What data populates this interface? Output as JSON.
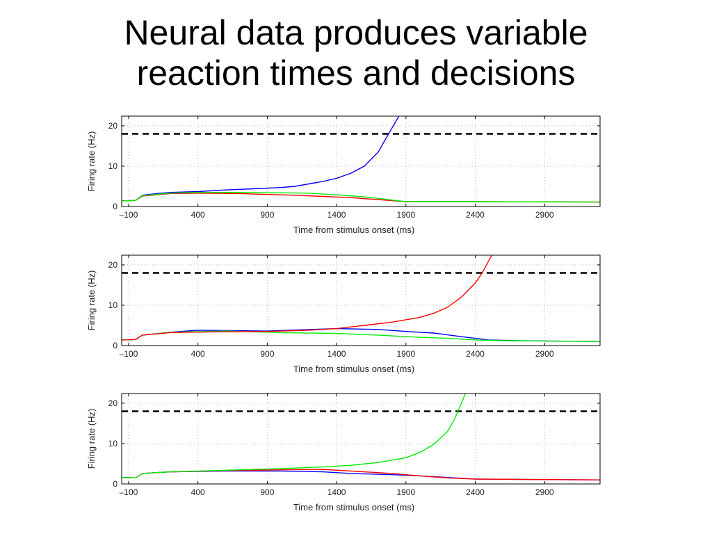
{
  "title_line1": "Neural data produces variable",
  "title_line2": "reaction times and decisions",
  "chart_data": [
    {
      "type": "line",
      "xlabel": "Time from stimulus onset (ms)",
      "ylabel": "Firing rate (Hz)",
      "xlim": [
        -150,
        3300
      ],
      "ylim": [
        0,
        22.4
      ],
      "xticks": [
        -100,
        400,
        900,
        1400,
        1900,
        2400,
        2900
      ],
      "yticks": [
        0,
        10,
        20
      ],
      "grid": true,
      "threshold": 18,
      "series": [
        {
          "name": "blue",
          "color": "#0000ff",
          "points": [
            [
              -150,
              1.4
            ],
            [
              -50,
              1.5
            ],
            [
              0,
              2.8
            ],
            [
              100,
              3.2
            ],
            [
              200,
              3.5
            ],
            [
              400,
              3.7
            ],
            [
              600,
              4.1
            ],
            [
              800,
              4.4
            ],
            [
              1000,
              4.7
            ],
            [
              1100,
              5
            ],
            [
              1200,
              5.6
            ],
            [
              1300,
              6.2
            ],
            [
              1400,
              7
            ],
            [
              1500,
              8.2
            ],
            [
              1600,
              10
            ],
            [
              1700,
              13.5
            ],
            [
              1750,
              16.5
            ],
            [
              1800,
              19.5
            ],
            [
              1860,
              23
            ]
          ]
        },
        {
          "name": "red",
          "color": "#ff0000",
          "points": [
            [
              -150,
              1.4
            ],
            [
              -50,
              1.5
            ],
            [
              0,
              2.6
            ],
            [
              200,
              3.2
            ],
            [
              400,
              3.3
            ],
            [
              700,
              3.2
            ],
            [
              900,
              3
            ],
            [
              1100,
              2.8
            ],
            [
              1300,
              2.5
            ],
            [
              1500,
              2.2
            ],
            [
              1700,
              1.7
            ],
            [
              1900,
              1.2
            ],
            [
              2400,
              1.2
            ],
            [
              3300,
              1.1
            ]
          ]
        },
        {
          "name": "green",
          "color": "#00ee00",
          "points": [
            [
              -150,
              1.4
            ],
            [
              -50,
              1.5
            ],
            [
              0,
              2.7
            ],
            [
              200,
              3.3
            ],
            [
              400,
              3.5
            ],
            [
              700,
              3.5
            ],
            [
              1000,
              3.4
            ],
            [
              1200,
              3.3
            ],
            [
              1400,
              2.9
            ],
            [
              1600,
              2.4
            ],
            [
              1800,
              1.6
            ],
            [
              1900,
              1.2
            ],
            [
              2400,
              1.2
            ],
            [
              3300,
              1.1
            ]
          ]
        }
      ]
    },
    {
      "type": "line",
      "xlabel": "Time from stimulus onset (ms)",
      "ylabel": "Firing rate (Hz)",
      "xlim": [
        -150,
        3300
      ],
      "ylim": [
        0,
        22.4
      ],
      "xticks": [
        -100,
        400,
        900,
        1400,
        1900,
        2400,
        2900
      ],
      "yticks": [
        0,
        10,
        20
      ],
      "grid": true,
      "threshold": 18,
      "series": [
        {
          "name": "blue",
          "color": "#0000ff",
          "points": [
            [
              -150,
              1.4
            ],
            [
              -50,
              1.5
            ],
            [
              0,
              2.6
            ],
            [
              200,
              3.3
            ],
            [
              400,
              3.8
            ],
            [
              900,
              3.6
            ],
            [
              1400,
              4.2
            ],
            [
              1700,
              4
            ],
            [
              1900,
              3.5
            ],
            [
              2100,
              3.1
            ],
            [
              2300,
              2.2
            ],
            [
              2500,
              1.4
            ],
            [
              2700,
              1.2
            ],
            [
              3300,
              1.0
            ]
          ]
        },
        {
          "name": "green",
          "color": "#00ee00",
          "points": [
            [
              -150,
              1.4
            ],
            [
              -50,
              1.5
            ],
            [
              0,
              2.6
            ],
            [
              200,
              3.3
            ],
            [
              600,
              3.6
            ],
            [
              1000,
              3.2
            ],
            [
              1400,
              3
            ],
            [
              1700,
              2.6
            ],
            [
              1900,
              2.2
            ],
            [
              2200,
              1.8
            ],
            [
              2400,
              1.4
            ],
            [
              2600,
              1.2
            ],
            [
              3300,
              1.0
            ]
          ]
        },
        {
          "name": "red",
          "color": "#ff0000",
          "points": [
            [
              -150,
              1.4
            ],
            [
              -50,
              1.5
            ],
            [
              0,
              2.6
            ],
            [
              200,
              3.2
            ],
            [
              500,
              3.4
            ],
            [
              900,
              3.5
            ],
            [
              1200,
              3.8
            ],
            [
              1400,
              4.2
            ],
            [
              1600,
              5
            ],
            [
              1800,
              5.8
            ],
            [
              2000,
              7
            ],
            [
              2100,
              8
            ],
            [
              2200,
              9.5
            ],
            [
              2300,
              12
            ],
            [
              2400,
              15.5
            ],
            [
              2450,
              18
            ],
            [
              2520,
              22.5
            ]
          ]
        }
      ]
    },
    {
      "type": "line",
      "xlabel": "Time from stimulus onset (ms)",
      "ylabel": "Firing rate (Hz)",
      "xlim": [
        -150,
        3300
      ],
      "ylim": [
        0,
        22.4
      ],
      "xticks": [
        -100,
        400,
        900,
        1400,
        1900,
        2400,
        2900
      ],
      "yticks": [
        0,
        10,
        20
      ],
      "grid": true,
      "threshold": 18,
      "series": [
        {
          "name": "blue",
          "color": "#0000ff",
          "points": [
            [
              -150,
              1.6
            ],
            [
              -50,
              1.5
            ],
            [
              0,
              2.6
            ],
            [
              200,
              3
            ],
            [
              600,
              3.2
            ],
            [
              1000,
              3.2
            ],
            [
              1300,
              3
            ],
            [
              1500,
              2.6
            ],
            [
              1800,
              2.3
            ],
            [
              2000,
              2
            ],
            [
              2200,
              1.6
            ],
            [
              2400,
              1.2
            ],
            [
              3300,
              1.0
            ]
          ]
        },
        {
          "name": "red",
          "color": "#ff0000",
          "points": [
            [
              -150,
              1.6
            ],
            [
              -50,
              1.5
            ],
            [
              0,
              2.6
            ],
            [
              200,
              3
            ],
            [
              600,
              3.3
            ],
            [
              1000,
              3.5
            ],
            [
              1300,
              3.6
            ],
            [
              1500,
              3.2
            ],
            [
              1800,
              2.6
            ],
            [
              2000,
              2
            ],
            [
              2200,
              1.5
            ],
            [
              2400,
              1.2
            ],
            [
              3300,
              1.0
            ]
          ]
        },
        {
          "name": "green",
          "color": "#00ee00",
          "points": [
            [
              -150,
              1.6
            ],
            [
              -50,
              1.5
            ],
            [
              0,
              2.6
            ],
            [
              200,
              3
            ],
            [
              600,
              3.4
            ],
            [
              1000,
              3.8
            ],
            [
              1300,
              4.2
            ],
            [
              1500,
              4.6
            ],
            [
              1700,
              5.3
            ],
            [
              1900,
              6.5
            ],
            [
              2000,
              7.8
            ],
            [
              2100,
              9.8
            ],
            [
              2200,
              13
            ],
            [
              2250,
              16
            ],
            [
              2300,
              20
            ],
            [
              2330,
              22.5
            ]
          ]
        }
      ]
    }
  ]
}
